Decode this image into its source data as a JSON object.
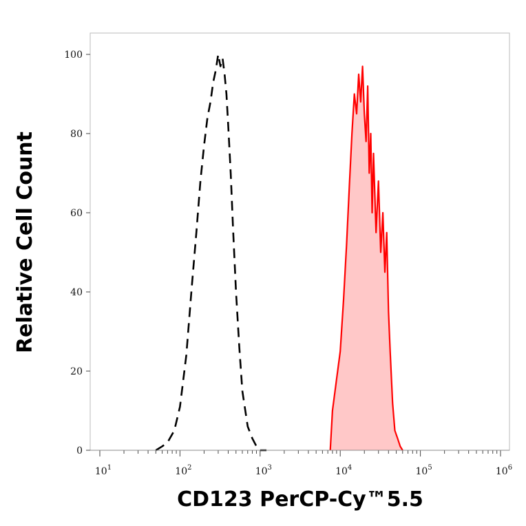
{
  "chart_data": {
    "type": "area",
    "xlabel": "CD123 PerCP-Cy™5.5",
    "ylabel": "Relative Cell Count",
    "xscale": "log",
    "xlim": [
      0,
      1000000
    ],
    "ylim": [
      0,
      100
    ],
    "y_ticks": [
      "0",
      "20",
      "40",
      "60",
      "80",
      "100"
    ],
    "x_ticks": [
      {
        "base": "10",
        "exp": "1",
        "value": 10
      },
      {
        "base": "10",
        "exp": "2",
        "value": 100
      },
      {
        "base": "10",
        "exp": "3",
        "value": 1000
      },
      {
        "base": "10",
        "exp": "4",
        "value": 10000
      },
      {
        "base": "10",
        "exp": "5",
        "value": 100000
      },
      {
        "base": "10",
        "exp": "6",
        "value": 1000000
      }
    ],
    "series": [
      {
        "style": "dashed",
        "color": "#000000",
        "fill": "none",
        "x": [
          50,
          60,
          70,
          85,
          100,
          120,
          140,
          160,
          180,
          200,
          220,
          240,
          260,
          280,
          300,
          320,
          340,
          360,
          380,
          400,
          430,
          460,
          500,
          550,
          600,
          700,
          800,
          900,
          1000,
          1200
        ],
        "y": [
          0,
          1,
          2,
          5,
          11,
          24,
          41,
          55,
          68,
          77,
          84,
          88,
          93,
          96,
          100,
          97,
          99,
          95,
          90,
          82,
          70,
          56,
          40,
          26,
          15,
          6,
          3,
          1,
          0,
          0
        ]
      },
      {
        "style": "solid",
        "color": "#ff0000",
        "fill": "#ffc8c8",
        "x": [
          7500,
          8000,
          9000,
          10000,
          11000,
          12000,
          13000,
          14000,
          15000,
          16000,
          17000,
          18000,
          19000,
          20000,
          21000,
          22000,
          23000,
          24000,
          25000,
          26000,
          28000,
          30000,
          32000,
          34000,
          36000,
          38000,
          40000,
          42000,
          45000,
          48000,
          52000,
          56000,
          60000
        ],
        "y": [
          0,
          10,
          18,
          25,
          38,
          52,
          67,
          80,
          90,
          85,
          95,
          88,
          97,
          85,
          78,
          92,
          70,
          80,
          60,
          75,
          55,
          68,
          50,
          60,
          45,
          55,
          35,
          25,
          12,
          5,
          3,
          1,
          0
        ]
      }
    ]
  }
}
